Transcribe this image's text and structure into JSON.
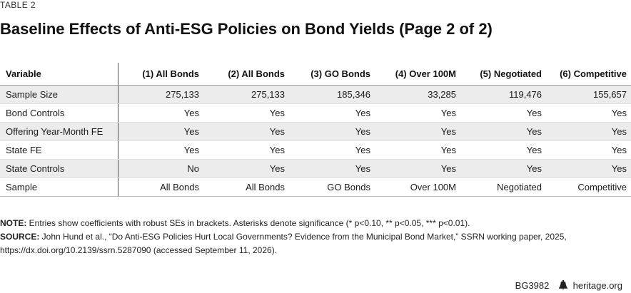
{
  "kicker": "TABLE 2",
  "title": "Baseline Effects of Anti-ESG Policies on Bond Yields (Page 2 of 2)",
  "table": {
    "headers": [
      "Variable",
      "(1) All Bonds",
      "(2) All Bonds",
      "(3) GO Bonds",
      "(4) Over 100M",
      "(5) Negotiated",
      "(6) Competitive"
    ],
    "rows": [
      [
        "Sample Size",
        "275,133",
        "275,133",
        "185,346",
        "33,285",
        "119,476",
        "155,657"
      ],
      [
        "Bond Controls",
        "Yes",
        "Yes",
        "Yes",
        "Yes",
        "Yes",
        "Yes"
      ],
      [
        "Offering Year-Month FE",
        "Yes",
        "Yes",
        "Yes",
        "Yes",
        "Yes",
        "Yes"
      ],
      [
        "State FE",
        "Yes",
        "Yes",
        "Yes",
        "Yes",
        "Yes",
        "Yes"
      ],
      [
        "State Controls",
        "No",
        "Yes",
        "Yes",
        "Yes",
        "Yes",
        "Yes"
      ],
      [
        "Sample",
        "All Bonds",
        "All Bonds",
        "GO Bonds",
        "Over 100M",
        "Negotiated",
        "Competitive"
      ]
    ]
  },
  "notes": {
    "note_label": "NOTE:",
    "note_text": " Entries show coefficients with robust SEs in brackets. Asterisks denote significance (* p<0.10, ** p<0.05, *** p<0.01).",
    "source_label": "SOURCE:",
    "source_text": " John Hund et al., “Do Anti-ESG Policies Hurt Local Governments? Evidence from the Municipal Bond Market,” SSRN working paper, 2025, https://dx.doi.org/10.2139/ssrn.5287090 (accessed September 11, 2026)."
  },
  "footer": {
    "code": "BG3982",
    "site": "heritage.org",
    "icon": "liberty-bell-icon"
  }
}
